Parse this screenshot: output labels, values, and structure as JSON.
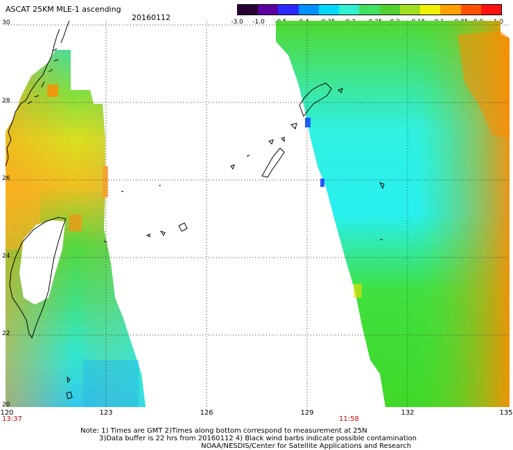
{
  "header": {
    "title": "ASCAT 25KM MLE-1 ascending",
    "date": "20160112"
  },
  "colorbar": {
    "colors": [
      "#2a0033",
      "#5a00a0",
      "#2a2aff",
      "#0090ff",
      "#00d8ff",
      "#30f0d0",
      "#40e060",
      "#50d030",
      "#a0e020",
      "#f0f000",
      "#ffa000",
      "#ff5000",
      "#ff1010"
    ],
    "labels": [
      "-3.0",
      "-1.0",
      "-0.5",
      "-0.4",
      "-0.35",
      "-0.3",
      "-0.25",
      "-0.2",
      "-0.15",
      "-0.1",
      "-0.05",
      "0.0",
      "1.0"
    ]
  },
  "axes": {
    "lat_labels": [
      "30",
      "28",
      "26",
      "24",
      "22",
      "20"
    ],
    "lon_labels": [
      "120",
      "123",
      "126",
      "129",
      "132",
      "135"
    ]
  },
  "times": {
    "left": "13:37",
    "right": "11:58"
  },
  "notes": {
    "line1": "Note: 1) Times are GMT 2)Times along bottom correspond to measurement at 25N",
    "line2": "3)Data buffer is 22 hrs from 20160112 4) Black wind barbs indicate possible contamination",
    "line3": "NOAA/NESDIS/Center for Satellite Applications and Research"
  },
  "colors": {
    "swath_green": "#3fdc3f",
    "swath_cyan": "#22f0e8",
    "swath_orange": "#ff8c00",
    "coast": "#000000"
  }
}
